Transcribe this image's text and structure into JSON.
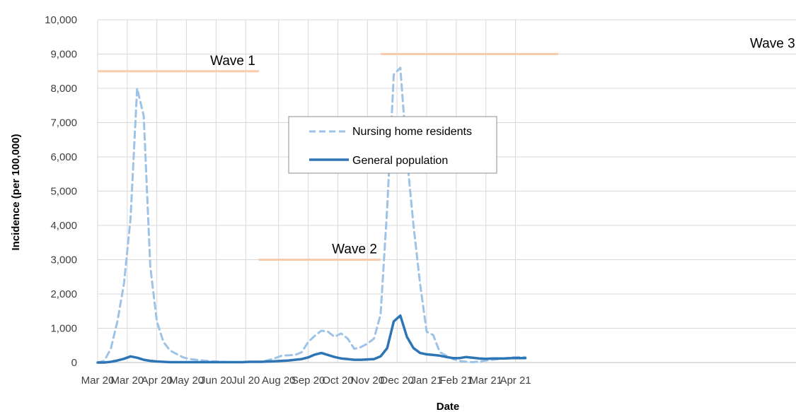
{
  "chart_data": {
    "type": "line",
    "xlabel": "Date",
    "ylabel": "Incidence (per 100,000)",
    "ylim": [
      0,
      10000
    ],
    "yticks": [
      0,
      1000,
      2000,
      3000,
      4000,
      5000,
      6000,
      7000,
      8000,
      9000,
      10000
    ],
    "ytick_labels": [
      "0",
      "1,000",
      "2,000",
      "3,000",
      "4,000",
      "5,000",
      "6,000",
      "7,000",
      "8,000",
      "9,000",
      "10,000"
    ],
    "xticks": [
      {
        "label": "Mar 20",
        "week": 0
      },
      {
        "label": "Mar 20",
        "week": 4.5
      },
      {
        "label": "Apr 20",
        "week": 9
      },
      {
        "label": "May 20",
        "week": 13.5
      },
      {
        "label": "Jun 20",
        "week": 18
      },
      {
        "label": "Jul 20",
        "week": 22.5
      },
      {
        "label": "Aug 20",
        "week": 27.5
      },
      {
        "label": "Sep 20",
        "week": 32
      },
      {
        "label": "Oct 20",
        "week": 36.5
      },
      {
        "label": "Nov 20",
        "week": 41
      },
      {
        "label": "Dec 20",
        "week": 45.5
      },
      {
        "label": "Jan 21",
        "week": 50
      },
      {
        "label": "Feb 21",
        "week": 54.5
      },
      {
        "label": "Mar 21",
        "week": 59
      },
      {
        "label": "Apr 21",
        "week": 63.5
      }
    ],
    "grid": true,
    "legend_position": "center",
    "series": [
      {
        "name": "Nursing home residents",
        "color": "#9dc3e6",
        "style": "dashed",
        "x": [
          0,
          1,
          2,
          3,
          4,
          5,
          6,
          7,
          8,
          9,
          10,
          11,
          12,
          13,
          14,
          15,
          16,
          17,
          18,
          19,
          20,
          21,
          22,
          23,
          24,
          25,
          26,
          27,
          28,
          29,
          30,
          31,
          32,
          33,
          34,
          35,
          36,
          37,
          38,
          39,
          40,
          41,
          42,
          43,
          44,
          45,
          46,
          47,
          48,
          49,
          50,
          51,
          52,
          53,
          54,
          55,
          56,
          57,
          58,
          59,
          60,
          61,
          62,
          63,
          64,
          65
        ],
        "values": [
          0,
          50,
          400,
          1200,
          2300,
          4200,
          8000,
          7200,
          2800,
          1200,
          600,
          350,
          250,
          150,
          100,
          80,
          60,
          40,
          30,
          20,
          10,
          10,
          10,
          20,
          20,
          30,
          70,
          130,
          200,
          210,
          220,
          300,
          600,
          780,
          930,
          900,
          750,
          850,
          700,
          400,
          450,
          550,
          700,
          1400,
          4500,
          8400,
          8600,
          6000,
          4000,
          2300,
          900,
          800,
          300,
          200,
          100,
          50,
          20,
          10,
          30,
          60,
          80,
          100,
          130,
          150,
          160,
          160
        ],
        "ymax_clip": 10000
      },
      {
        "name": "General population",
        "color": "#2e75b6",
        "style": "solid",
        "x": [
          0,
          1,
          2,
          3,
          4,
          5,
          6,
          7,
          8,
          9,
          10,
          11,
          12,
          13,
          14,
          15,
          16,
          17,
          18,
          19,
          20,
          21,
          22,
          23,
          24,
          25,
          26,
          27,
          28,
          29,
          30,
          31,
          32,
          33,
          34,
          35,
          36,
          37,
          38,
          39,
          40,
          41,
          42,
          43,
          44,
          45,
          46,
          47,
          48,
          49,
          50,
          51,
          52,
          53,
          54,
          55,
          56,
          57,
          58,
          59,
          60,
          61,
          62,
          63,
          64,
          65
        ],
        "values": [
          0,
          0,
          20,
          60,
          110,
          180,
          140,
          80,
          50,
          30,
          20,
          10,
          10,
          10,
          10,
          10,
          10,
          10,
          10,
          10,
          10,
          10,
          10,
          20,
          20,
          20,
          30,
          40,
          50,
          60,
          80,
          100,
          150,
          230,
          280,
          220,
          160,
          120,
          100,
          80,
          80,
          90,
          100,
          180,
          420,
          1200,
          1370,
          750,
          420,
          280,
          240,
          220,
          200,
          160,
          130,
          130,
          160,
          140,
          120,
          110,
          120,
          120,
          120,
          130,
          130,
          130
        ]
      }
    ],
    "annotations": [
      {
        "text": "Wave 1",
        "from_week": 0,
        "to_week": 24.5,
        "y": 8500,
        "color": "#f8cbad"
      },
      {
        "text": "Wave 2",
        "from_week": 24.5,
        "to_week": 43,
        "y": 3000,
        "color": "#f8cbad"
      },
      {
        "text": "Wave 3",
        "from_week": 43,
        "to_week": 70,
        "y": 9000,
        "color": "#f8cbad"
      }
    ]
  }
}
